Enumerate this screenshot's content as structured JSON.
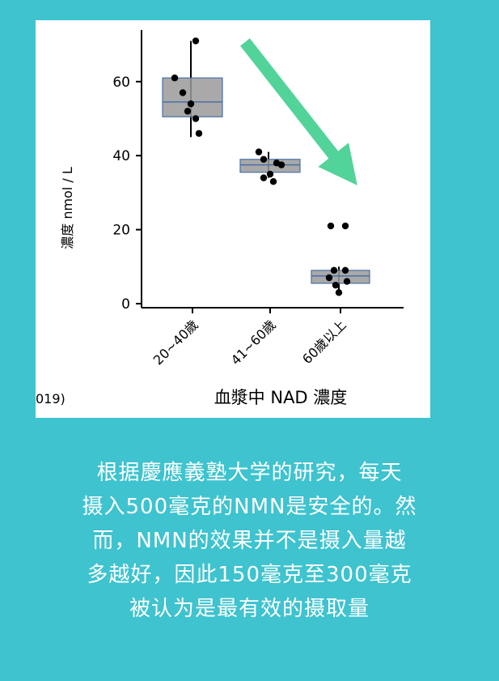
{
  "chart_data": {
    "type": "box",
    "categories": [
      "20~40歲",
      "41~60歲",
      "60歲以上"
    ],
    "ylabel": "濃度 nmol / L",
    "xlabel": "血漿中 NAD 濃度",
    "y_ticks": [
      0,
      20,
      40,
      60
    ],
    "ylim": [
      -2,
      74
    ],
    "grid": false,
    "series": [
      {
        "category": "20~40歲",
        "box": {
          "q1": 50.5,
          "median": 54.5,
          "q3": 61,
          "whisker_low": 45,
          "whisker_high": 71
        },
        "points": [
          71,
          61,
          57,
          54,
          52,
          50,
          46
        ]
      },
      {
        "category": "41~60歲",
        "box": {
          "q1": 35.5,
          "median": 37.5,
          "q3": 39,
          "whisker_low": 34,
          "whisker_high": 41
        },
        "points": [
          41,
          39,
          38,
          37.5,
          35,
          34,
          33
        ]
      },
      {
        "category": "60歲以上",
        "box": {
          "q1": 5.5,
          "median": 7.5,
          "q3": 9,
          "whisker_low": 3,
          "whisker_high": 10
        },
        "points": [
          21,
          21,
          9,
          9,
          7,
          6,
          5,
          3
        ]
      }
    ],
    "source_fragment": "019)",
    "colors": {
      "box_fill": "#9a9a9a",
      "box_edge": "#4a6fa5",
      "median": "#4a6fa5",
      "arrow": "#52d39a",
      "points": "#000000"
    }
  },
  "caption": {
    "lines": [
      "根据慶應義塾大学的研究，每天",
      "摄入500毫克的NMN是安全的。然",
      "而，NMN的效果并不是摄入量越",
      "多越好，因此150毫克至300毫克",
      "被认为是最有效的摄取量"
    ]
  },
  "colors": {
    "background": "#3ec3cf",
    "figure_bg": "#ffffff",
    "caption_text": "#ffffff"
  }
}
